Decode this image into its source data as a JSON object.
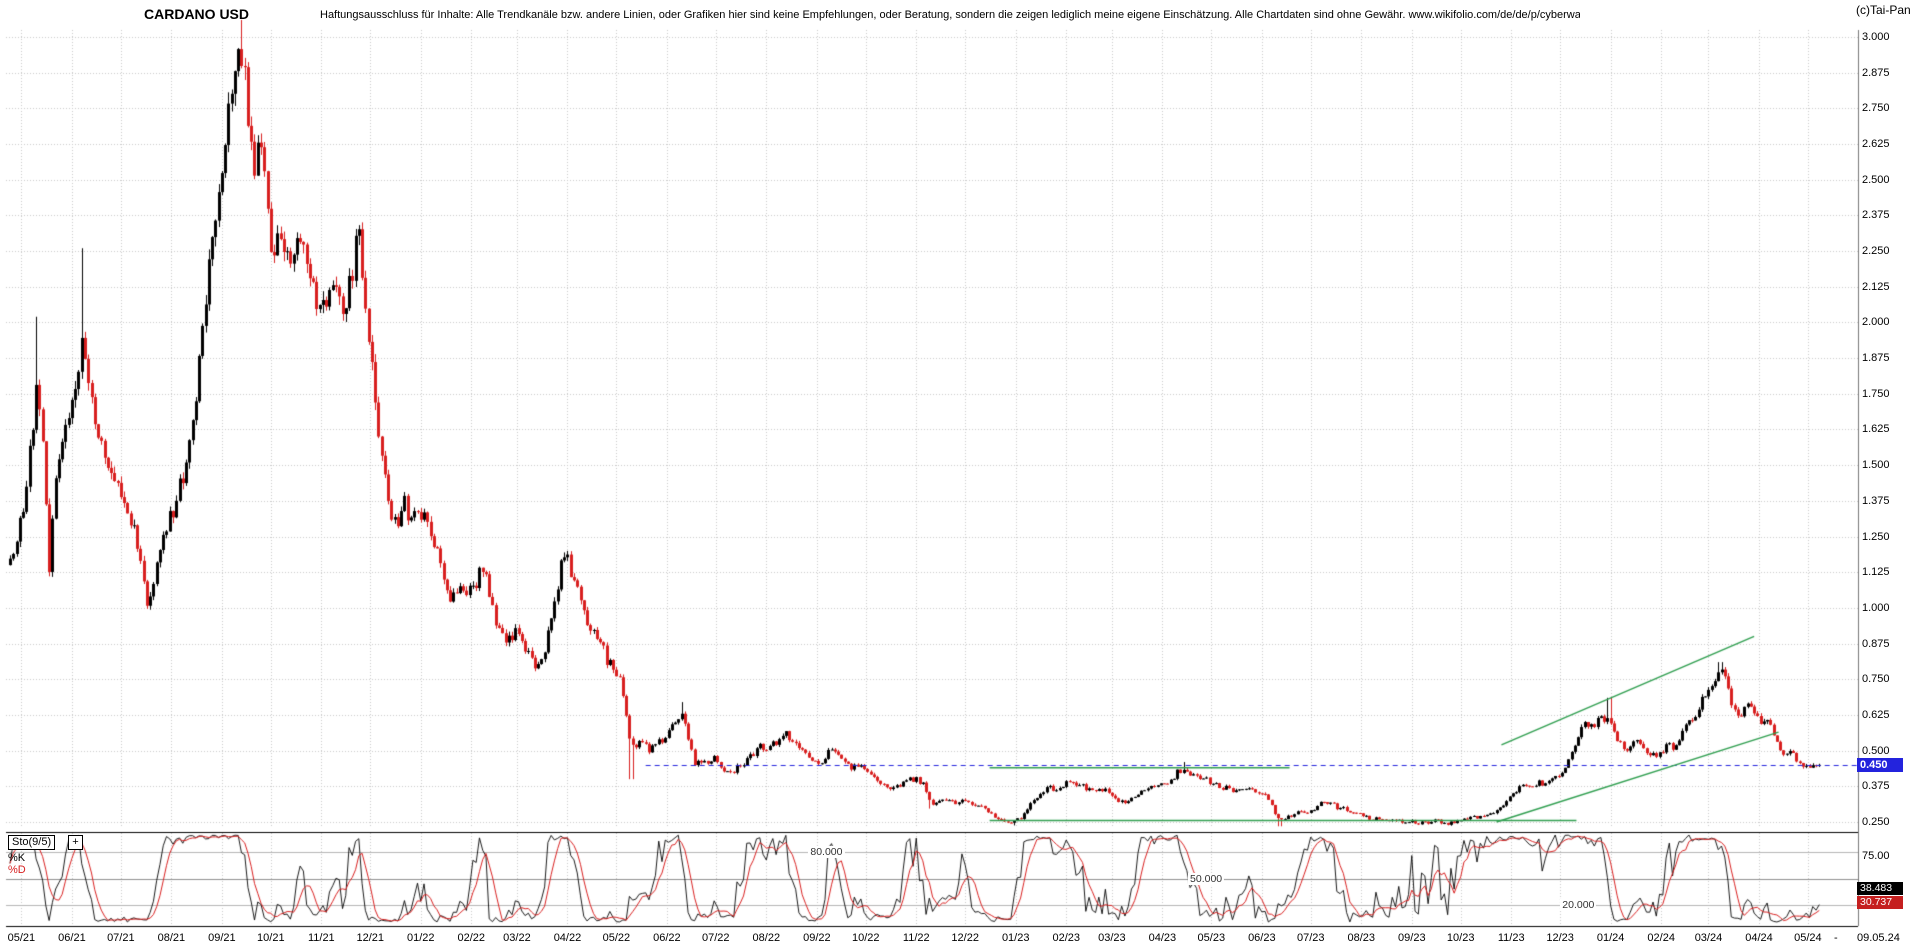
{
  "header": {
    "title": "CARDANO USD",
    "disclaimer": "Haftungsausschluss für Inhalte: Alle Trendkanäle bzw. andere Linien, oder Grafiken hier sind keine Empfehlungen, oder Beratung, sondern die zeigen lediglich meine eigene Einschätzung. Alle Chartdaten sind ohne Gewähr.  www.wikifolio.com/de/de/p/cyberwaehrungen",
    "credit": "(c)Tai-Pan"
  },
  "chart_data": {
    "type": "candlestick",
    "title": "CARDANO USD",
    "price_axis": {
      "tick_labels": [
        "3.000",
        "2.875",
        "2.750",
        "2.625",
        "2.500",
        "2.375",
        "2.250",
        "2.125",
        "2.000",
        "1.875",
        "1.750",
        "1.625",
        "1.500",
        "1.375",
        "1.250",
        "1.125",
        "1.000",
        "0.875",
        "0.750",
        "0.625",
        "0.500",
        "0.375",
        "0.250"
      ],
      "tick_values": [
        3.0,
        2.875,
        2.75,
        2.625,
        2.5,
        2.375,
        2.25,
        2.125,
        2.0,
        1.875,
        1.75,
        1.625,
        1.5,
        1.375,
        1.25,
        1.125,
        1.0,
        0.875,
        0.75,
        0.625,
        0.5,
        0.375,
        0.25
      ],
      "current_price_label": "0.450",
      "current_price": 0.45
    },
    "time_axis": {
      "month_labels": [
        "05/21",
        "06/21",
        "07/21",
        "08/21",
        "09/21",
        "10/21",
        "11/21",
        "12/21",
        "01/22",
        "02/22",
        "03/22",
        "04/22",
        "05/22",
        "06/22",
        "07/22",
        "08/22",
        "09/22",
        "10/22",
        "11/22",
        "12/22",
        "01/23",
        "02/23",
        "03/23",
        "04/23",
        "05/23",
        "06/23",
        "07/23",
        "08/23",
        "09/23",
        "10/23",
        "11/23",
        "12/23",
        "01/24",
        "02/24",
        "03/24",
        "04/24",
        "05/24"
      ],
      "start_date": "2021-04-24",
      "end_date": "2024-05-09",
      "end_dash": "-",
      "end_date_label": "09.05.24"
    },
    "series_anchors": {
      "unit": "days_from_start",
      "points": [
        [
          0,
          1.15
        ],
        [
          4,
          1.25
        ],
        [
          8,
          1.35
        ],
        [
          12,
          1.55
        ],
        [
          16,
          1.78
        ],
        [
          20,
          1.55
        ],
        [
          24,
          1.12
        ],
        [
          28,
          1.48
        ],
        [
          32,
          1.58
        ],
        [
          36,
          1.66
        ],
        [
          40,
          1.8
        ],
        [
          44,
          1.92
        ],
        [
          48,
          1.78
        ],
        [
          52,
          1.66
        ],
        [
          56,
          1.6
        ],
        [
          60,
          1.52
        ],
        [
          64,
          1.45
        ],
        [
          68,
          1.42
        ],
        [
          72,
          1.35
        ],
        [
          76,
          1.28
        ],
        [
          80,
          1.15
        ],
        [
          84,
          1.03
        ],
        [
          88,
          1.1
        ],
        [
          92,
          1.22
        ],
        [
          96,
          1.28
        ],
        [
          100,
          1.35
        ],
        [
          104,
          1.43
        ],
        [
          108,
          1.5
        ],
        [
          112,
          1.65
        ],
        [
          116,
          1.88
        ],
        [
          120,
          2.08
        ],
        [
          124,
          2.28
        ],
        [
          128,
          2.5
        ],
        [
          132,
          2.65
        ],
        [
          136,
          2.78
        ],
        [
          140,
          2.9
        ],
        [
          142,
          2.95
        ],
        [
          146,
          2.75
        ],
        [
          150,
          2.52
        ],
        [
          154,
          2.68
        ],
        [
          158,
          2.35
        ],
        [
          162,
          2.22
        ],
        [
          166,
          2.35
        ],
        [
          170,
          2.2
        ],
        [
          174,
          2.25
        ],
        [
          178,
          2.28
        ],
        [
          182,
          2.18
        ],
        [
          186,
          2.12
        ],
        [
          190,
          2.05
        ],
        [
          194,
          2.06
        ],
        [
          198,
          2.14
        ],
        [
          202,
          2.06
        ],
        [
          206,
          2.1
        ],
        [
          210,
          2.2
        ],
        [
          214,
          2.3
        ],
        [
          218,
          2.08
        ],
        [
          222,
          1.82
        ],
        [
          226,
          1.58
        ],
        [
          230,
          1.45
        ],
        [
          234,
          1.32
        ],
        [
          238,
          1.28
        ],
        [
          242,
          1.36
        ],
        [
          246,
          1.3
        ],
        [
          250,
          1.36
        ],
        [
          254,
          1.32
        ],
        [
          258,
          1.25
        ],
        [
          262,
          1.18
        ],
        [
          266,
          1.1
        ],
        [
          270,
          1.04
        ],
        [
          274,
          1.03
        ],
        [
          278,
          1.08
        ],
        [
          282,
          1.06
        ],
        [
          286,
          1.09
        ],
        [
          290,
          1.14
        ],
        [
          294,
          1.06
        ],
        [
          298,
          0.96
        ],
        [
          302,
          0.89
        ],
        [
          306,
          0.9
        ],
        [
          310,
          0.92
        ],
        [
          314,
          0.89
        ],
        [
          318,
          0.83
        ],
        [
          322,
          0.8
        ],
        [
          326,
          0.83
        ],
        [
          330,
          0.9
        ],
        [
          334,
          1.02
        ],
        [
          338,
          1.15
        ],
        [
          342,
          1.16
        ],
        [
          346,
          1.08
        ],
        [
          350,
          1.02
        ],
        [
          354,
          0.96
        ],
        [
          358,
          0.92
        ],
        [
          362,
          0.88
        ],
        [
          366,
          0.82
        ],
        [
          370,
          0.8
        ],
        [
          374,
          0.75
        ],
        [
          378,
          0.62
        ],
        [
          381,
          0.52
        ],
        [
          384,
          0.52
        ],
        [
          388,
          0.53
        ],
        [
          392,
          0.5
        ],
        [
          396,
          0.52
        ],
        [
          400,
          0.54
        ],
        [
          404,
          0.57
        ],
        [
          408,
          0.61
        ],
        [
          412,
          0.63
        ],
        [
          416,
          0.53
        ],
        [
          420,
          0.46
        ],
        [
          424,
          0.45
        ],
        [
          428,
          0.46
        ],
        [
          432,
          0.47
        ],
        [
          436,
          0.45
        ],
        [
          440,
          0.42
        ],
        [
          444,
          0.43
        ],
        [
          448,
          0.45
        ],
        [
          452,
          0.47
        ],
        [
          456,
          0.49
        ],
        [
          460,
          0.52
        ],
        [
          464,
          0.51
        ],
        [
          468,
          0.52
        ],
        [
          472,
          0.53
        ],
        [
          476,
          0.56
        ],
        [
          480,
          0.54
        ],
        [
          484,
          0.52
        ],
        [
          488,
          0.5
        ],
        [
          492,
          0.46
        ],
        [
          496,
          0.45
        ],
        [
          500,
          0.48
        ],
        [
          504,
          0.51
        ],
        [
          508,
          0.48
        ],
        [
          512,
          0.46
        ],
        [
          516,
          0.44
        ],
        [
          520,
          0.45
        ],
        [
          524,
          0.44
        ],
        [
          528,
          0.42
        ],
        [
          532,
          0.4
        ],
        [
          536,
          0.38
        ],
        [
          540,
          0.365
        ],
        [
          544,
          0.37
        ],
        [
          548,
          0.385
        ],
        [
          552,
          0.4
        ],
        [
          556,
          0.4
        ],
        [
          560,
          0.38
        ],
        [
          564,
          0.32
        ],
        [
          568,
          0.31
        ],
        [
          572,
          0.33
        ],
        [
          576,
          0.32
        ],
        [
          580,
          0.315
        ],
        [
          584,
          0.32
        ],
        [
          588,
          0.315
        ],
        [
          592,
          0.31
        ],
        [
          596,
          0.3
        ],
        [
          600,
          0.285
        ],
        [
          604,
          0.27
        ],
        [
          608,
          0.258
        ],
        [
          612,
          0.248
        ],
        [
          616,
          0.25
        ],
        [
          620,
          0.265
        ],
        [
          624,
          0.295
        ],
        [
          628,
          0.325
        ],
        [
          632,
          0.35
        ],
        [
          636,
          0.375
        ],
        [
          640,
          0.365
        ],
        [
          644,
          0.37
        ],
        [
          648,
          0.385
        ],
        [
          652,
          0.39
        ],
        [
          656,
          0.38
        ],
        [
          660,
          0.37
        ],
        [
          664,
          0.36
        ],
        [
          668,
          0.37
        ],
        [
          672,
          0.36
        ],
        [
          676,
          0.35
        ],
        [
          680,
          0.325
        ],
        [
          684,
          0.31
        ],
        [
          688,
          0.335
        ],
        [
          692,
          0.35
        ],
        [
          696,
          0.358
        ],
        [
          700,
          0.372
        ],
        [
          704,
          0.378
        ],
        [
          708,
          0.388
        ],
        [
          712,
          0.398
        ],
        [
          716,
          0.425
        ],
        [
          720,
          0.44
        ],
        [
          724,
          0.42
        ],
        [
          728,
          0.41
        ],
        [
          732,
          0.4
        ],
        [
          736,
          0.392
        ],
        [
          740,
          0.382
        ],
        [
          744,
          0.372
        ],
        [
          748,
          0.366
        ],
        [
          752,
          0.36
        ],
        [
          756,
          0.368
        ],
        [
          760,
          0.365
        ],
        [
          764,
          0.36
        ],
        [
          768,
          0.352
        ],
        [
          772,
          0.334
        ],
        [
          776,
          0.28
        ],
        [
          779,
          0.252
        ],
        [
          782,
          0.262
        ],
        [
          786,
          0.272
        ],
        [
          790,
          0.288
        ],
        [
          794,
          0.285
        ],
        [
          798,
          0.29
        ],
        [
          802,
          0.305
        ],
        [
          806,
          0.325
        ],
        [
          810,
          0.318
        ],
        [
          814,
          0.302
        ],
        [
          818,
          0.295
        ],
        [
          822,
          0.29
        ],
        [
          826,
          0.286
        ],
        [
          830,
          0.272
        ],
        [
          834,
          0.262
        ],
        [
          838,
          0.26
        ],
        [
          842,
          0.256
        ],
        [
          846,
          0.25
        ],
        [
          850,
          0.255
        ],
        [
          854,
          0.25
        ],
        [
          858,
          0.254
        ],
        [
          862,
          0.25
        ],
        [
          866,
          0.246
        ],
        [
          870,
          0.25
        ],
        [
          874,
          0.254
        ],
        [
          878,
          0.25
        ],
        [
          882,
          0.246
        ],
        [
          886,
          0.25
        ],
        [
          890,
          0.254
        ],
        [
          894,
          0.262
        ],
        [
          898,
          0.27
        ],
        [
          902,
          0.265
        ],
        [
          906,
          0.278
        ],
        [
          910,
          0.288
        ],
        [
          914,
          0.3
        ],
        [
          918,
          0.328
        ],
        [
          922,
          0.35
        ],
        [
          926,
          0.368
        ],
        [
          930,
          0.378
        ],
        [
          934,
          0.374
        ],
        [
          938,
          0.388
        ],
        [
          942,
          0.384
        ],
        [
          946,
          0.398
        ],
        [
          950,
          0.415
        ],
        [
          954,
          0.44
        ],
        [
          958,
          0.5
        ],
        [
          962,
          0.55
        ],
        [
          966,
          0.6
        ],
        [
          970,
          0.58
        ],
        [
          974,
          0.615
        ],
        [
          978,
          0.6
        ],
        [
          981,
          0.63
        ],
        [
          985,
          0.55
        ],
        [
          989,
          0.52
        ],
        [
          993,
          0.5
        ],
        [
          997,
          0.53
        ],
        [
          1001,
          0.51
        ],
        [
          1005,
          0.5
        ],
        [
          1009,
          0.48
        ],
        [
          1013,
          0.5
        ],
        [
          1017,
          0.52
        ],
        [
          1021,
          0.5
        ],
        [
          1025,
          0.55
        ],
        [
          1029,
          0.59
        ],
        [
          1033,
          0.62
        ],
        [
          1037,
          0.67
        ],
        [
          1041,
          0.71
        ],
        [
          1045,
          0.74
        ],
        [
          1049,
          0.78
        ],
        [
          1053,
          0.73
        ],
        [
          1057,
          0.65
        ],
        [
          1061,
          0.62
        ],
        [
          1065,
          0.66
        ],
        [
          1069,
          0.64
        ],
        [
          1073,
          0.6
        ],
        [
          1077,
          0.62
        ],
        [
          1081,
          0.575
        ],
        [
          1085,
          0.52
        ],
        [
          1089,
          0.48
        ],
        [
          1093,
          0.5
        ],
        [
          1097,
          0.46
        ],
        [
          1101,
          0.44
        ],
        [
          1105,
          0.455
        ],
        [
          1108,
          0.442
        ],
        [
          1111,
          0.45
        ]
      ]
    },
    "spikes": [
      {
        "d": 16,
        "h": 2.02
      },
      {
        "d": 44,
        "h": 2.26
      },
      {
        "d": 142,
        "h": 3.06
      },
      {
        "d": 381,
        "l": 0.4
      },
      {
        "d": 412,
        "h": 0.67
      },
      {
        "d": 564,
        "l": 0.297
      },
      {
        "d": 616,
        "l": 0.238
      },
      {
        "d": 720,
        "h": 0.46
      },
      {
        "d": 779,
        "l": 0.235
      },
      {
        "d": 981,
        "h": 0.685
      },
      {
        "d": 1049,
        "h": 0.81
      }
    ],
    "overlays": {
      "current_price_line": {
        "price": 0.45,
        "from_day": 390,
        "color": "#2323dd",
        "style": "dashed"
      },
      "support_line_low": {
        "price": 0.255,
        "from_day": 601,
        "to_day": 961,
        "color": "#2f9e4f"
      },
      "resistance_line_mid": {
        "price": 0.44,
        "from_day": 601,
        "to_day": 785,
        "color": "#2f9e4f"
      },
      "trend_channel_lower": {
        "from": [
          912,
          0.25
        ],
        "to": [
          1085,
          0.565
        ],
        "color": "#2f9e4f"
      },
      "trend_channel_upper": {
        "from": [
          915,
          0.52
        ],
        "to": [
          1070,
          0.9
        ],
        "color": "#2f9e4f"
      }
    },
    "indicator_panel": {
      "name_label": "Sto(9/5)",
      "expand_icon": "+",
      "k_label": "%K",
      "d_label": "%D",
      "k_period": 9,
      "d_period": 5,
      "levels": [
        {
          "label": "80.000",
          "value": 80
        },
        {
          "label": "50.000",
          "value": 50
        },
        {
          "label": "20.000",
          "value": 20
        }
      ],
      "axis_tick_label": "75.00",
      "axis_tick_value": 75,
      "k_value_label": "38.483",
      "d_value_label": "30.737"
    },
    "colors": {
      "up_candle": "#000000",
      "down_candle": "#d81f1f",
      "grid": "#c8c8c8",
      "current_price": "#2323dd",
      "trend_green": "#2f9e4f",
      "sto_k": "#000000",
      "sto_d": "#d81f1f"
    }
  }
}
